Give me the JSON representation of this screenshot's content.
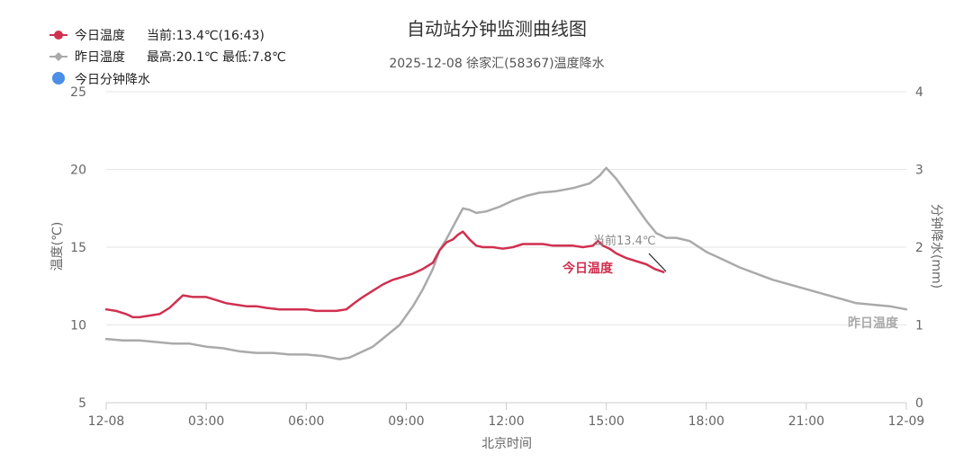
{
  "chart_data": {
    "type": "line",
    "title": "自动站分钟监测曲线图",
    "subtitle": "2025-12-08 徐家汇(58367)温度降水",
    "xlabel": "北京时间",
    "ylabel": "温度(℃)",
    "ylabel_right": "分钟降水(mm)",
    "x_ticks": [
      "12-08",
      "03:00",
      "06:00",
      "09:00",
      "12:00",
      "15:00",
      "18:00",
      "21:00",
      "12-09"
    ],
    "x_range_hours": [
      0,
      24
    ],
    "y_ticks": [
      "5",
      "10",
      "15",
      "20",
      "25"
    ],
    "ylim": [
      5,
      25
    ],
    "y_right_ticks": [
      "0",
      "1",
      "2",
      "3",
      "4"
    ],
    "ylim_right": [
      0,
      4
    ],
    "grid": true,
    "legend_position": "top-left",
    "legend": [
      {
        "name": "今日温度",
        "info": "当前:13.4℃(16:43)",
        "color": "#d03050"
      },
      {
        "name": "昨日温度",
        "info": "最高:20.1℃ 最低:7.8℃",
        "color": "#aaaaaa"
      },
      {
        "name": "今日分钟降水",
        "info": "",
        "color": "#4a8fe8"
      }
    ],
    "annotations": {
      "current": "当前13.4℃",
      "today_label": "今日温度",
      "yesterday_label": "昨日温度"
    },
    "series": [
      {
        "name": "今日温度",
        "color": "#d03050",
        "x": [
          0,
          0.3,
          0.6,
          0.8,
          1.0,
          1.3,
          1.6,
          1.9,
          2.1,
          2.3,
          2.6,
          3.0,
          3.3,
          3.6,
          3.9,
          4.2,
          4.5,
          4.8,
          5.2,
          5.6,
          6.0,
          6.3,
          6.6,
          6.9,
          7.2,
          7.5,
          7.7,
          8.0,
          8.3,
          8.6,
          8.9,
          9.2,
          9.5,
          9.8,
          10.0,
          10.2,
          10.4,
          10.55,
          10.7,
          10.9,
          11.1,
          11.3,
          11.6,
          11.9,
          12.2,
          12.5,
          12.8,
          13.1,
          13.4,
          13.7,
          14.0,
          14.3,
          14.6,
          14.75,
          14.9,
          15.1,
          15.3,
          15.6,
          15.9,
          16.2,
          16.45,
          16.72
        ],
        "values": [
          11.0,
          10.9,
          10.7,
          10.5,
          10.5,
          10.6,
          10.7,
          11.1,
          11.5,
          11.9,
          11.8,
          11.8,
          11.6,
          11.4,
          11.3,
          11.2,
          11.2,
          11.1,
          11.0,
          11.0,
          11.0,
          10.9,
          10.9,
          10.9,
          11.0,
          11.5,
          11.8,
          12.2,
          12.6,
          12.9,
          13.1,
          13.3,
          13.6,
          14.0,
          14.8,
          15.3,
          15.5,
          15.8,
          16.0,
          15.5,
          15.1,
          15.0,
          15.0,
          14.9,
          15.0,
          15.2,
          15.2,
          15.2,
          15.1,
          15.1,
          15.1,
          15.0,
          15.1,
          15.4,
          15.1,
          14.9,
          14.6,
          14.3,
          14.1,
          13.9,
          13.6,
          13.4
        ]
      },
      {
        "name": "昨日温度",
        "color": "#aaaaaa",
        "x": [
          0,
          0.5,
          1.0,
          1.5,
          2.0,
          2.5,
          3.0,
          3.5,
          4.0,
          4.5,
          5.0,
          5.5,
          6.0,
          6.5,
          7.0,
          7.3,
          7.6,
          8.0,
          8.4,
          8.8,
          9.2,
          9.5,
          9.8,
          10.0,
          10.2,
          10.5,
          10.7,
          10.9,
          11.1,
          11.4,
          11.8,
          12.2,
          12.6,
          13.0,
          13.5,
          14.0,
          14.5,
          14.8,
          15.0,
          15.3,
          15.6,
          15.9,
          16.2,
          16.5,
          16.8,
          17.1,
          17.5,
          18.0,
          18.5,
          19.0,
          19.5,
          20.0,
          20.5,
          21.0,
          21.5,
          22.0,
          22.5,
          23.0,
          23.5,
          24.0
        ],
        "values": [
          9.1,
          9.0,
          9.0,
          8.9,
          8.8,
          8.8,
          8.6,
          8.5,
          8.3,
          8.2,
          8.2,
          8.1,
          8.1,
          8.0,
          7.8,
          7.9,
          8.2,
          8.6,
          9.3,
          10.0,
          11.2,
          12.3,
          13.6,
          14.8,
          15.5,
          16.7,
          17.5,
          17.4,
          17.2,
          17.3,
          17.6,
          18.0,
          18.3,
          18.5,
          18.6,
          18.8,
          19.1,
          19.6,
          20.1,
          19.4,
          18.5,
          17.6,
          16.7,
          15.9,
          15.6,
          15.6,
          15.4,
          14.7,
          14.2,
          13.7,
          13.3,
          12.9,
          12.6,
          12.3,
          12.0,
          11.7,
          11.4,
          11.3,
          11.2,
          11.0
        ]
      }
    ]
  }
}
